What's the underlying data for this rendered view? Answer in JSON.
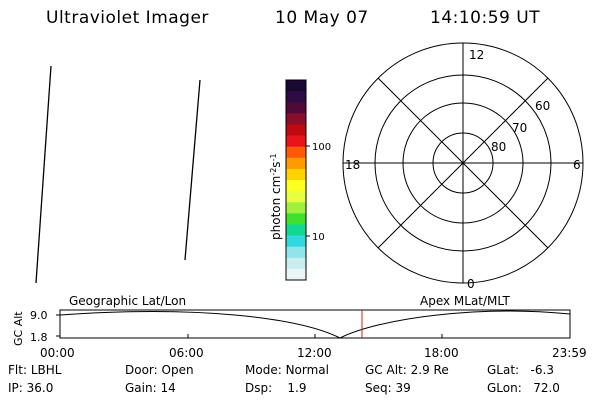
{
  "header": {
    "title": "Ultraviolet Imager",
    "date": "10 May 07",
    "time": "14:10:59 UT"
  },
  "colorbar": {
    "label": "photon cm",
    "label_exp1": "-2",
    "label_s": "s",
    "label_exp2": "-1",
    "tick_high": "100",
    "tick_low": "10",
    "colors": [
      "#1a0a33",
      "#2e0b45",
      "#500a3a",
      "#8a0d2a",
      "#c00a12",
      "#e8141a",
      "#ff5a05",
      "#ff9a00",
      "#ffd200",
      "#ffff20",
      "#e8ff40",
      "#a0f040",
      "#40e030",
      "#10d890",
      "#30d8e0",
      "#90e4ea",
      "#c8eef0",
      "#eaf6f6"
    ]
  },
  "polar": {
    "labels": {
      "top": "12",
      "bottom": "0",
      "left": "18",
      "right": "6"
    },
    "rings": [
      "60",
      "70",
      "80"
    ]
  },
  "timeline": {
    "left_label": "Geographic Lat/Lon",
    "right_label": "Apex MLat/MLT",
    "y_axis_label": "GC Alt",
    "y_high": "9.0",
    "y_low": "1.8",
    "x_ticks": [
      "00:00",
      "06:00",
      "12:00",
      "18:00",
      "23:59"
    ],
    "marker_color": "#cc2222"
  },
  "info": {
    "row1": {
      "flt_label": "Flt:",
      "flt_value": "LBHL",
      "door_label": "Door:",
      "door_value": "Open",
      "mode_label": "Mode:",
      "mode_value": "Normal",
      "gcalt_label": "GC Alt:",
      "gcalt_value": "2.9 Re",
      "glat_label": "GLat:",
      "glat_value": "-6.3"
    },
    "row2": {
      "ip_label": "IP:",
      "ip_value": "36.0",
      "gain_label": "Gain:",
      "gain_value": "14",
      "dsp_label": "Dsp:",
      "dsp_value": "1.9",
      "seq_label": "Seq:",
      "seq_value": "39",
      "glon_label": "GLon:",
      "glon_value": "72.0"
    }
  }
}
